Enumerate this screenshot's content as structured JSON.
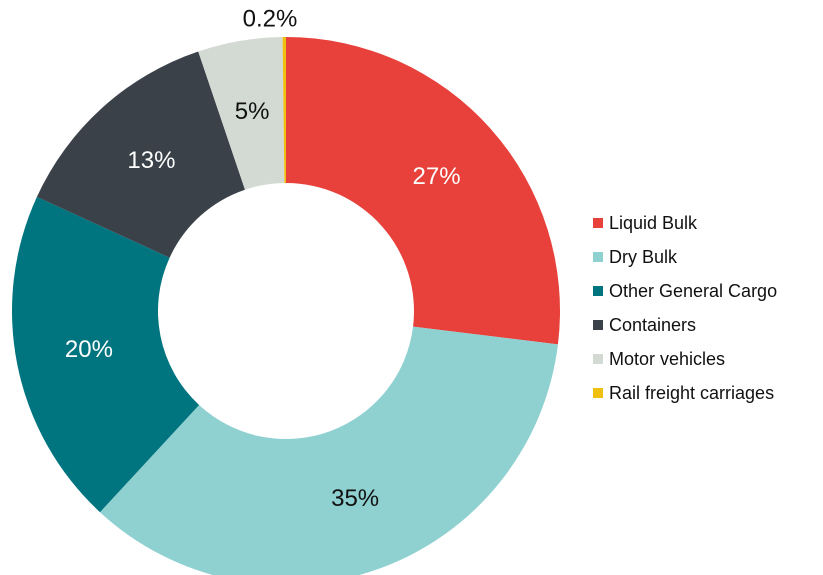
{
  "chart_data": {
    "type": "donut",
    "categories": [
      "Liquid Bulk",
      "Dry Bulk",
      "Other General Cargo",
      "Containers",
      "Motor vehicles",
      "Rail freight carriages"
    ],
    "values": [
      27,
      35,
      20,
      13,
      5,
      0.2
    ],
    "value_labels": [
      "27%",
      "35%",
      "20%",
      "13%",
      "5%",
      "0.2%"
    ],
    "colors": [
      "#e8403a",
      "#8fd0d0",
      "#007580",
      "#3a4149",
      "#d3dad3",
      "#f0c010"
    ],
    "legend": "right"
  }
}
